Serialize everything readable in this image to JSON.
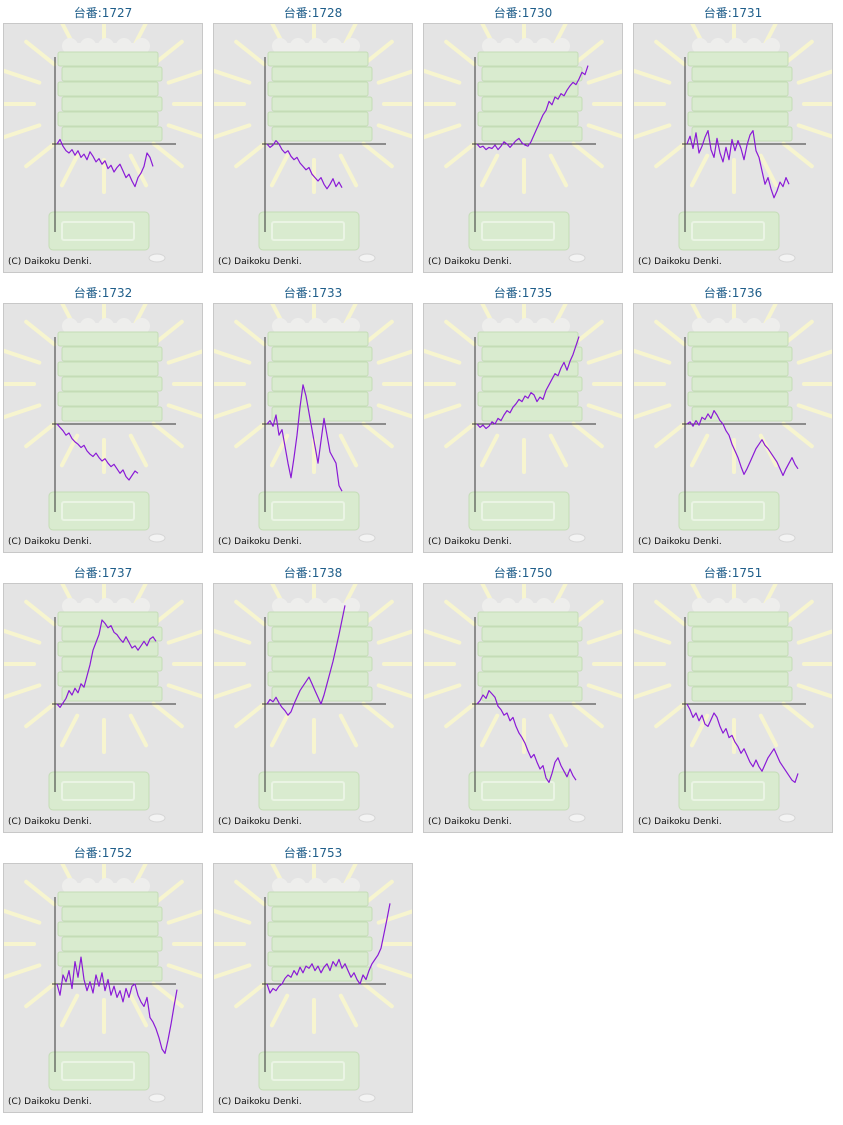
{
  "colors": {
    "line": "#8a1ad6",
    "axis": "#333333",
    "title": "#1f5e8a",
    "panel_bg": "#e4e4e4"
  },
  "chart_data": [
    {
      "type": "line",
      "title": "台番:1727",
      "copyright": "(C) Daikoku Denki.",
      "y": [
        0,
        4,
        -2,
        -6,
        -8,
        -5,
        -10,
        -6,
        -12,
        -9,
        -14,
        -7,
        -11,
        -16,
        -13,
        -18,
        -15,
        -22,
        -19,
        -25,
        -21,
        -18,
        -24,
        -30,
        -27,
        -33,
        -38,
        -30,
        -26,
        -20,
        -8,
        -12,
        -20
      ]
    },
    {
      "type": "line",
      "title": "台番:1728",
      "copyright": "(C) Daikoku Denki.",
      "y": [
        0,
        -3,
        -1,
        3,
        0,
        -5,
        -8,
        -6,
        -11,
        -14,
        -12,
        -17,
        -20,
        -23,
        -21,
        -27,
        -30,
        -33,
        -30,
        -36,
        -40,
        -36,
        -31,
        -38,
        -34,
        -39
      ]
    },
    {
      "type": "line",
      "title": "台番:1730",
      "copyright": "(C) Daikoku Denki.",
      "y": [
        0,
        -3,
        -2,
        -5,
        -3,
        -4,
        -1,
        -5,
        -2,
        2,
        0,
        -3,
        0,
        3,
        5,
        1,
        -1,
        -2,
        2,
        8,
        14,
        20,
        26,
        30,
        38,
        35,
        42,
        40,
        45,
        43,
        48,
        52,
        55,
        53,
        58,
        64,
        62,
        70
      ]
    },
    {
      "type": "line",
      "title": "台番:1731",
      "copyright": "(C) Daikoku Denki.",
      "y": [
        0,
        7,
        -4,
        10,
        -8,
        -2,
        6,
        12,
        -5,
        -12,
        5,
        -8,
        -16,
        -3,
        -14,
        4,
        -6,
        3,
        -4,
        -14,
        -1,
        8,
        12,
        -6,
        -12,
        -24,
        -36,
        -30,
        -40,
        -48,
        -42,
        -34,
        -38,
        -30,
        -36
      ]
    },
    {
      "type": "line",
      "title": "台番:1732",
      "copyright": "(C) Daikoku Denki.",
      "y": [
        0,
        -3,
        -6,
        -10,
        -8,
        -13,
        -16,
        -18,
        -21,
        -19,
        -24,
        -27,
        -29,
        -26,
        -30,
        -33,
        -31,
        -35,
        -38,
        -36,
        -40,
        -44,
        -41,
        -47,
        -50,
        -46,
        -42,
        -44
      ]
    },
    {
      "type": "line",
      "title": "台番:1733",
      "copyright": "(C) Daikoku Denki.",
      "y": [
        0,
        3,
        -2,
        8,
        -10,
        -5,
        -20,
        -35,
        -48,
        -30,
        -10,
        15,
        35,
        25,
        10,
        -5,
        -20,
        -35,
        -15,
        5,
        -10,
        -25,
        -30,
        -35,
        -55,
        -60
      ]
    },
    {
      "type": "line",
      "title": "台番:1735",
      "copyright": "(C) Daikoku Denki.",
      "y": [
        0,
        -3,
        -1,
        -4,
        -2,
        2,
        0,
        5,
        3,
        8,
        12,
        10,
        15,
        18,
        22,
        20,
        25,
        23,
        28,
        26,
        20,
        24,
        22,
        30,
        35,
        40,
        45,
        43,
        50,
        55,
        48,
        56,
        62,
        70,
        78
      ]
    },
    {
      "type": "line",
      "title": "台番:1736",
      "copyright": "(C) Daikoku Denki.",
      "y": [
        0,
        2,
        -2,
        3,
        -1,
        6,
        4,
        9,
        5,
        12,
        8,
        3,
        0,
        -6,
        -10,
        -18,
        -24,
        -30,
        -38,
        -45,
        -40,
        -34,
        -28,
        -22,
        -18,
        -14,
        -19,
        -22,
        -26,
        -30,
        -34,
        -40,
        -46,
        -40,
        -35,
        -30,
        -36,
        -40
      ]
    },
    {
      "type": "line",
      "title": "台番:1737",
      "copyright": "(C) Daikoku Denki.",
      "y": [
        0,
        -3,
        1,
        5,
        12,
        8,
        14,
        10,
        18,
        15,
        25,
        35,
        48,
        55,
        62,
        75,
        72,
        68,
        70,
        64,
        62,
        58,
        55,
        60,
        55,
        50,
        52,
        48,
        52,
        56,
        52,
        58,
        60,
        56
      ]
    },
    {
      "type": "line",
      "title": "台番:1738",
      "copyright": "(C) Daikoku Denki.",
      "y": [
        0,
        4,
        2,
        6,
        1,
        -3,
        -6,
        -10,
        -7,
        0,
        6,
        12,
        16,
        20,
        24,
        18,
        12,
        6,
        0,
        8,
        18,
        28,
        38,
        50,
        62,
        75,
        88
      ]
    },
    {
      "type": "line",
      "title": "台番:1750",
      "copyright": "(C) Daikoku Denki.",
      "y": [
        0,
        3,
        8,
        5,
        12,
        9,
        6,
        -2,
        -5,
        -10,
        -8,
        -15,
        -12,
        -20,
        -26,
        -30,
        -35,
        -42,
        -48,
        -45,
        -52,
        -58,
        -55,
        -66,
        -70,
        -62,
        -52,
        -48,
        -55,
        -60,
        -65,
        -58,
        -64,
        -68
      ]
    },
    {
      "type": "line",
      "title": "台番:1751",
      "copyright": "(C) Daikoku Denki.",
      "y": [
        0,
        -5,
        -12,
        -8,
        -15,
        -10,
        -18,
        -20,
        -14,
        -8,
        -12,
        -20,
        -26,
        -22,
        -30,
        -28,
        -34,
        -38,
        -44,
        -40,
        -46,
        -52,
        -56,
        -50,
        -56,
        -60,
        -54,
        -48,
        -44,
        -40,
        -46,
        -52,
        -56,
        -60,
        -64,
        -68,
        -70,
        -62
      ]
    },
    {
      "type": "line",
      "title": "台番:1752",
      "copyright": "(C) Daikoku Denki.",
      "y": [
        0,
        -10,
        8,
        2,
        12,
        -4,
        20,
        6,
        24,
        4,
        -6,
        2,
        -8,
        8,
        -2,
        10,
        -6,
        4,
        -10,
        -2,
        -12,
        -6,
        -16,
        -4,
        -12,
        -2,
        0,
        -10,
        -16,
        -20,
        -12,
        -30,
        -34,
        -40,
        -48,
        -58,
        -62,
        -50,
        -36,
        -20,
        -5
      ]
    },
    {
      "type": "line",
      "title": "台番:1753",
      "copyright": "(C) Daikoku Denki.",
      "y": [
        0,
        -8,
        -4,
        -6,
        -2,
        0,
        5,
        8,
        6,
        12,
        8,
        15,
        10,
        16,
        14,
        18,
        12,
        16,
        10,
        15,
        18,
        12,
        20,
        16,
        22,
        14,
        18,
        12,
        6,
        10,
        4,
        0,
        8,
        4,
        12,
        18,
        22,
        26,
        32,
        45,
        58,
        72
      ]
    }
  ]
}
